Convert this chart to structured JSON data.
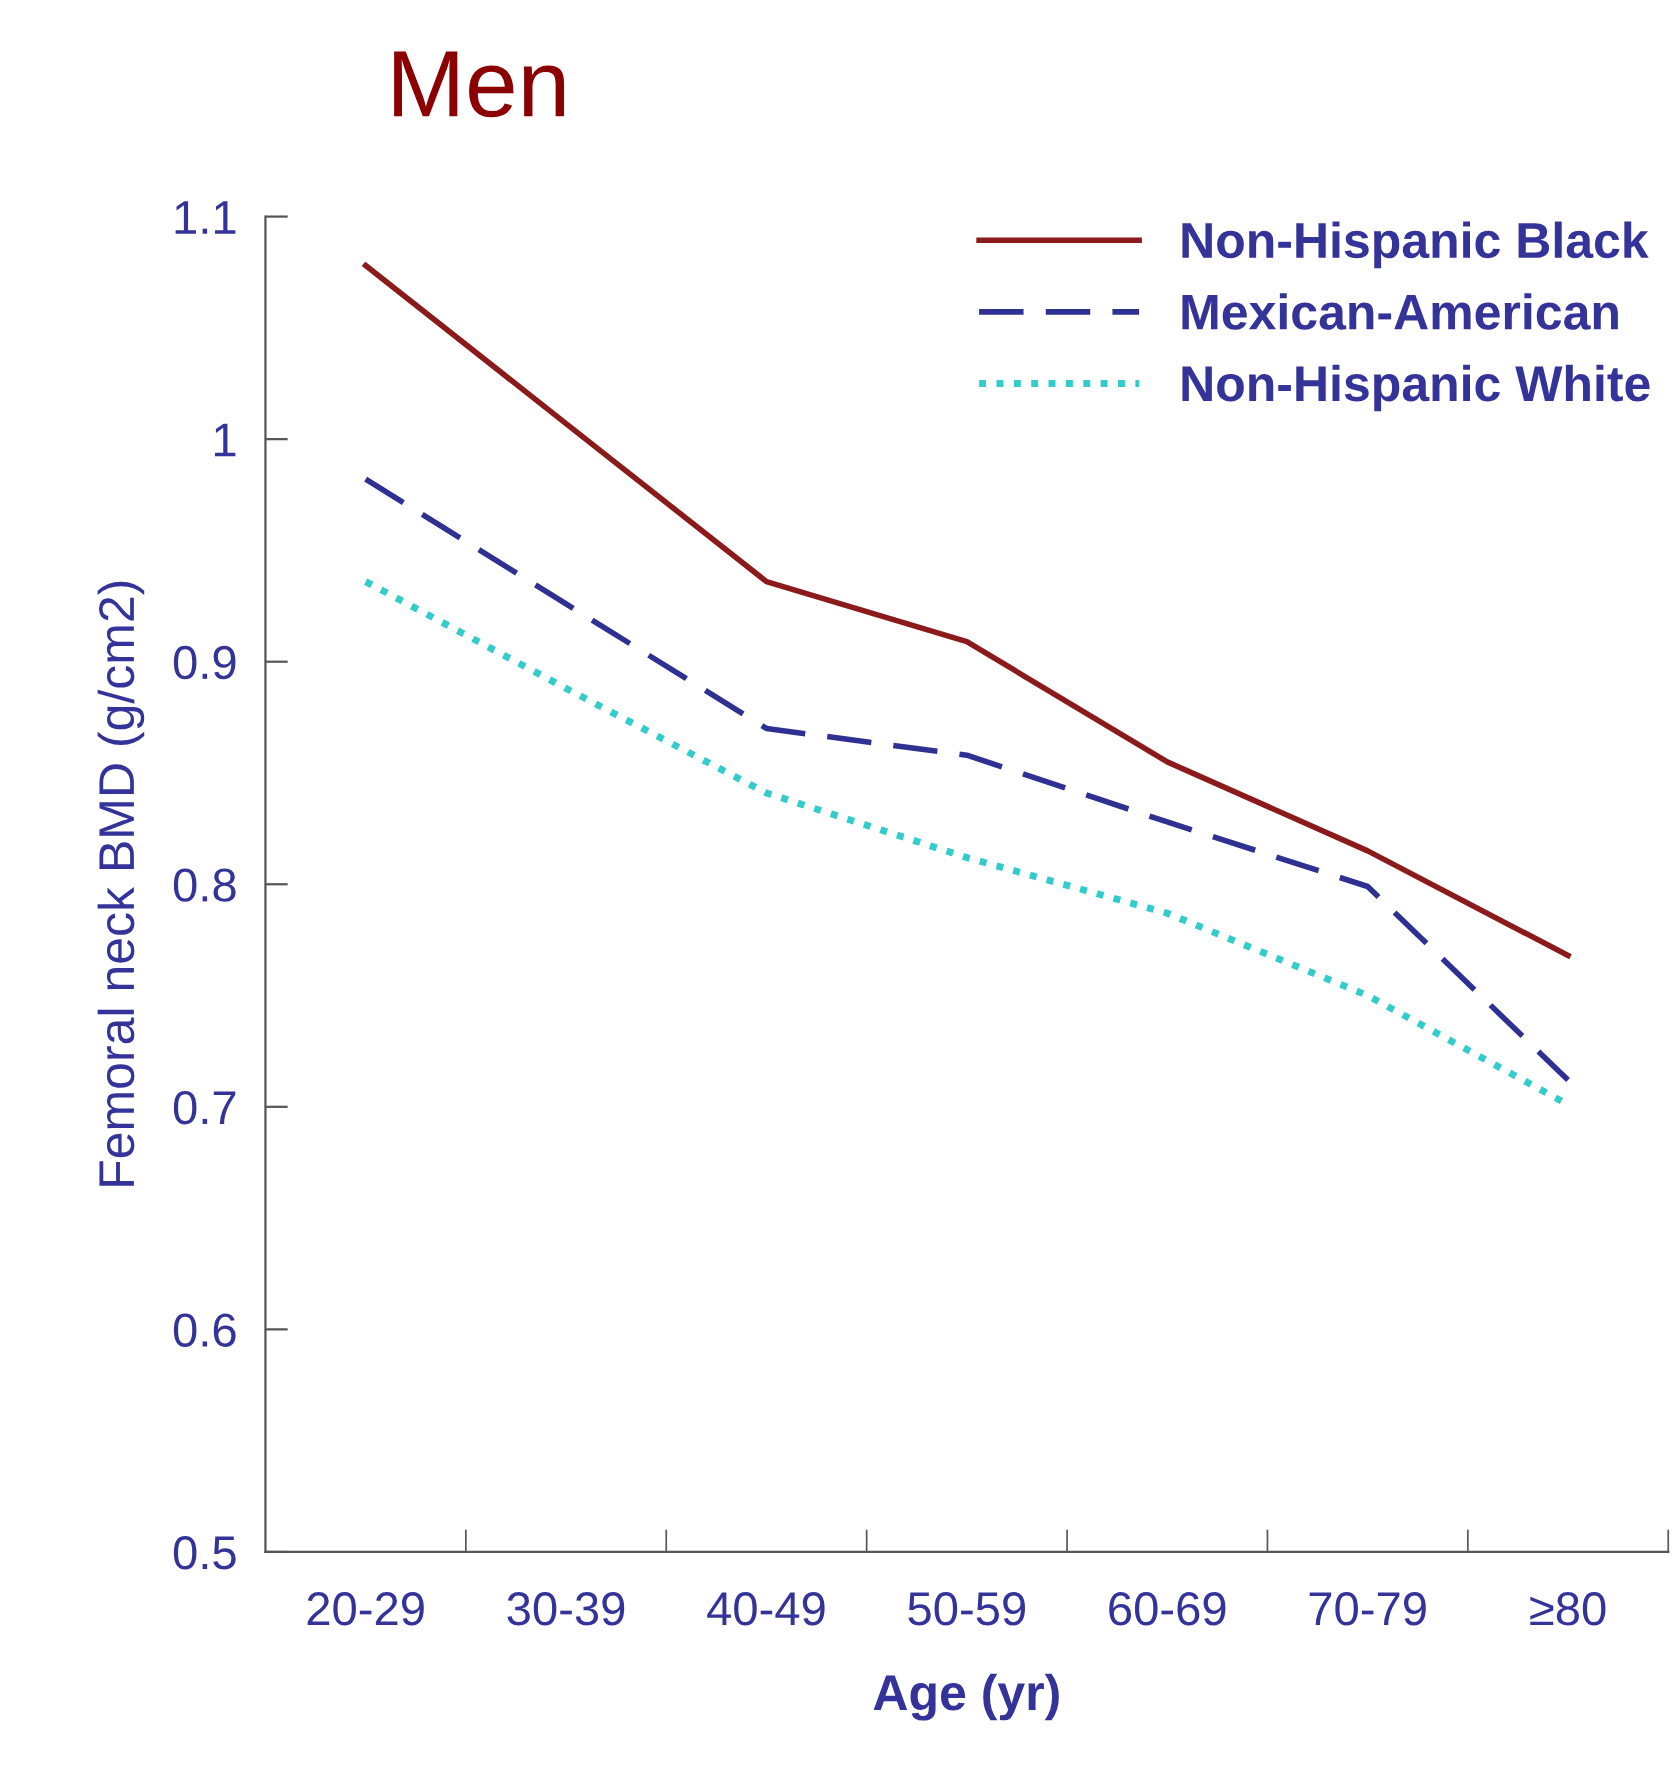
{
  "chart_data": {
    "type": "line",
    "title": "Men",
    "xlabel": "Age (yr)",
    "ylabel": "Femoral neck BMD (g/cm2)",
    "categories": [
      "20-29",
      "30-39",
      "40-49",
      "50-59",
      "60-69",
      "70-79",
      "≥80"
    ],
    "series": [
      {
        "name": "Non-Hispanic Black",
        "color": "#8b1a1a",
        "line_style": "solid",
        "values": [
          1.078,
          1.007,
          0.936,
          0.909,
          0.855,
          0.815,
          0.768
        ]
      },
      {
        "name": "Mexican-American",
        "color": "#2e3192",
        "line_style": "dashed",
        "values": [
          0.982,
          0.926,
          0.87,
          0.858,
          0.828,
          0.799,
          0.712
        ]
      },
      {
        "name": "Non-Hispanic White",
        "color": "#33cccc",
        "line_style": "dotted",
        "values": [
          0.936,
          0.888,
          0.841,
          0.812,
          0.787,
          0.75,
          0.701
        ]
      }
    ],
    "ylim": [
      0.5,
      1.1
    ],
    "yticks": [
      0.5,
      0.6,
      0.7,
      0.8,
      0.9,
      1,
      1.1
    ],
    "grid": false,
    "legend": "top right",
    "marker": "none"
  }
}
